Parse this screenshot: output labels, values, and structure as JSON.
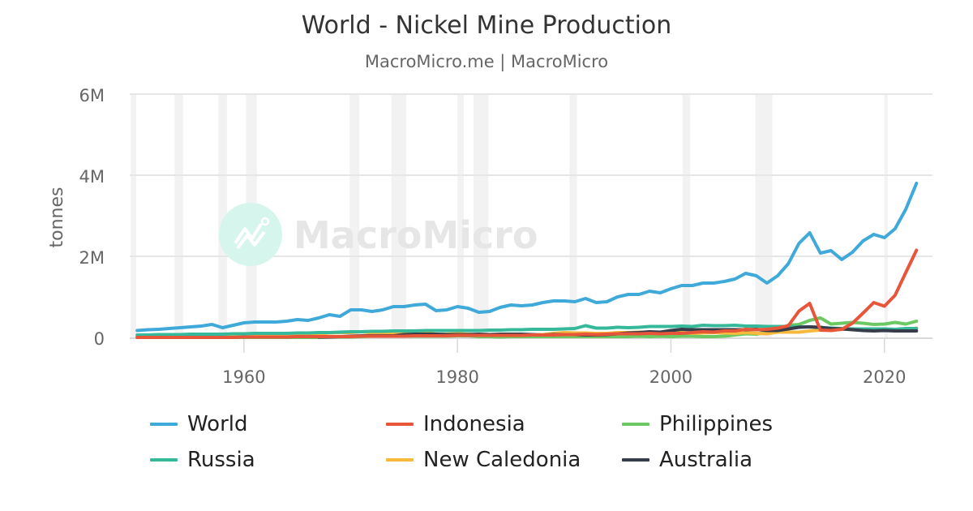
{
  "header": {
    "title": "World - Nickel Mine Production",
    "subtitle": "MacroMicro.me | MacroMicro"
  },
  "watermark": {
    "text": "MacroMicro",
    "circle_color": "#d6f5ec"
  },
  "chart_data": {
    "type": "line",
    "title": "World - Nickel Mine Production",
    "subtitle": "MacroMicro.me | MacroMicro",
    "xlabel": "",
    "ylabel": "tonnes",
    "ylim": [
      0,
      6000000
    ],
    "xlim": [
      1949.3,
      2024.5
    ],
    "y_ticks": [
      {
        "value": 0,
        "label": "0"
      },
      {
        "value": 2000000,
        "label": "2M"
      },
      {
        "value": 4000000,
        "label": "4M"
      },
      {
        "value": 6000000,
        "label": "6M"
      }
    ],
    "x_ticks": [
      {
        "value": 1960,
        "label": "1960"
      },
      {
        "value": 1980,
        "label": "1980"
      },
      {
        "value": 2000,
        "label": "2000"
      },
      {
        "value": 2020,
        "label": "2020"
      }
    ],
    "grid": true,
    "legend_position": "bottom",
    "recession_bands": [
      [
        1949.4,
        1949.9
      ],
      [
        1953.5,
        1954.3
      ],
      [
        1957.6,
        1958.4
      ],
      [
        1960.2,
        1961.2
      ],
      [
        1969.9,
        1970.8
      ],
      [
        1973.8,
        1975.2
      ],
      [
        1980.0,
        1980.6
      ],
      [
        1981.5,
        1982.9
      ],
      [
        1990.5,
        1991.2
      ],
      [
        2001.1,
        2001.8
      ],
      [
        2007.9,
        2009.5
      ],
      [
        2020.0,
        2020.3
      ]
    ],
    "x": [
      1950,
      1951,
      1952,
      1953,
      1954,
      1955,
      1956,
      1957,
      1958,
      1959,
      1960,
      1961,
      1962,
      1963,
      1964,
      1965,
      1966,
      1967,
      1968,
      1969,
      1970,
      1971,
      1972,
      1973,
      1974,
      1975,
      1976,
      1977,
      1978,
      1979,
      1980,
      1981,
      1982,
      1983,
      1984,
      1985,
      1986,
      1987,
      1988,
      1989,
      1990,
      1991,
      1992,
      1993,
      1994,
      1995,
      1996,
      1997,
      1998,
      1999,
      2000,
      2001,
      2002,
      2003,
      2004,
      2005,
      2006,
      2007,
      2008,
      2009,
      2010,
      2011,
      2012,
      2013,
      2014,
      2015,
      2016,
      2017,
      2018,
      2019,
      2020,
      2021,
      2022,
      2023
    ],
    "series": [
      {
        "name": "World",
        "color": "#3fa9d9",
        "values": [
          0.17,
          0.19,
          0.2,
          0.22,
          0.24,
          0.26,
          0.28,
          0.32,
          0.24,
          0.3,
          0.36,
          0.38,
          0.38,
          0.38,
          0.4,
          0.44,
          0.42,
          0.48,
          0.56,
          0.52,
          0.68,
          0.68,
          0.64,
          0.68,
          0.76,
          0.76,
          0.8,
          0.82,
          0.66,
          0.68,
          0.76,
          0.72,
          0.62,
          0.64,
          0.74,
          0.8,
          0.78,
          0.8,
          0.86,
          0.9,
          0.9,
          0.88,
          0.96,
          0.86,
          0.88,
          1.0,
          1.06,
          1.06,
          1.14,
          1.1,
          1.2,
          1.28,
          1.28,
          1.34,
          1.34,
          1.38,
          1.44,
          1.58,
          1.52,
          1.34,
          1.52,
          1.82,
          2.32,
          2.58,
          2.08,
          2.14,
          1.92,
          2.1,
          2.38,
          2.54,
          2.46,
          2.68,
          3.16,
          3.8
        ]
      },
      {
        "name": "Indonesia",
        "color": "#e8563a",
        "values": [
          0.0,
          0.0,
          0.0,
          0.0,
          0.0,
          0.0,
          0.0,
          0.0,
          0.0,
          0.0,
          0.01,
          0.01,
          0.01,
          0.01,
          0.01,
          0.02,
          0.02,
          0.02,
          0.02,
          0.02,
          0.02,
          0.03,
          0.03,
          0.03,
          0.03,
          0.03,
          0.04,
          0.04,
          0.04,
          0.04,
          0.05,
          0.05,
          0.05,
          0.05,
          0.05,
          0.05,
          0.05,
          0.06,
          0.06,
          0.06,
          0.07,
          0.07,
          0.08,
          0.07,
          0.08,
          0.09,
          0.09,
          0.09,
          0.1,
          0.09,
          0.1,
          0.1,
          0.12,
          0.14,
          0.13,
          0.16,
          0.16,
          0.2,
          0.19,
          0.2,
          0.23,
          0.29,
          0.65,
          0.84,
          0.18,
          0.17,
          0.2,
          0.35,
          0.6,
          0.86,
          0.77,
          1.04,
          1.6,
          2.15
        ]
      },
      {
        "name": "Philippines",
        "color": "#6cc862",
        "values": [
          0.0,
          0.0,
          0.0,
          0.0,
          0.0,
          0.0,
          0.0,
          0.0,
          0.0,
          0.0,
          0.0,
          0.0,
          0.0,
          0.0,
          0.0,
          0.0,
          0.0,
          0.0,
          0.01,
          0.01,
          0.01,
          0.02,
          0.03,
          0.03,
          0.03,
          0.03,
          0.03,
          0.03,
          0.03,
          0.03,
          0.04,
          0.04,
          0.02,
          0.02,
          0.01,
          0.02,
          0.02,
          0.02,
          0.02,
          0.02,
          0.02,
          0.02,
          0.02,
          0.02,
          0.02,
          0.02,
          0.02,
          0.03,
          0.02,
          0.03,
          0.02,
          0.03,
          0.03,
          0.02,
          0.02,
          0.03,
          0.06,
          0.09,
          0.08,
          0.14,
          0.18,
          0.3,
          0.32,
          0.42,
          0.48,
          0.33,
          0.35,
          0.37,
          0.35,
          0.32,
          0.33,
          0.37,
          0.33,
          0.4
        ]
      },
      {
        "name": "Russia",
        "color": "#35b99a",
        "values": [
          0.06,
          0.06,
          0.07,
          0.07,
          0.07,
          0.08,
          0.08,
          0.08,
          0.08,
          0.09,
          0.09,
          0.1,
          0.1,
          0.1,
          0.1,
          0.11,
          0.11,
          0.12,
          0.12,
          0.13,
          0.14,
          0.14,
          0.15,
          0.15,
          0.16,
          0.16,
          0.16,
          0.17,
          0.17,
          0.17,
          0.17,
          0.17,
          0.17,
          0.18,
          0.18,
          0.19,
          0.19,
          0.2,
          0.2,
          0.2,
          0.21,
          0.22,
          0.29,
          0.23,
          0.23,
          0.25,
          0.24,
          0.25,
          0.27,
          0.27,
          0.27,
          0.28,
          0.27,
          0.3,
          0.29,
          0.29,
          0.3,
          0.28,
          0.28,
          0.27,
          0.27,
          0.27,
          0.26,
          0.26,
          0.24,
          0.23,
          0.22,
          0.21,
          0.21,
          0.21,
          0.21,
          0.2,
          0.22,
          0.22
        ]
      },
      {
        "name": "New Caledonia",
        "color": "#f6b93b",
        "values": [
          0.03,
          0.03,
          0.03,
          0.03,
          0.03,
          0.03,
          0.04,
          0.04,
          0.04,
          0.05,
          0.05,
          0.05,
          0.05,
          0.05,
          0.06,
          0.06,
          0.07,
          0.09,
          0.11,
          0.12,
          0.12,
          0.14,
          0.11,
          0.11,
          0.12,
          0.13,
          0.12,
          0.11,
          0.08,
          0.08,
          0.09,
          0.08,
          0.06,
          0.05,
          0.06,
          0.07,
          0.07,
          0.06,
          0.07,
          0.1,
          0.12,
          0.11,
          0.11,
          0.1,
          0.1,
          0.12,
          0.12,
          0.13,
          0.12,
          0.11,
          0.12,
          0.12,
          0.1,
          0.11,
          0.12,
          0.11,
          0.1,
          0.12,
          0.1,
          0.09,
          0.13,
          0.13,
          0.13,
          0.16,
          0.18,
          0.19,
          0.2,
          0.21,
          0.21,
          0.21,
          0.2,
          0.19,
          0.19,
          0.23
        ]
      },
      {
        "name": "Australia",
        "color": "#363c4a",
        "values": [
          null,
          null,
          null,
          null,
          null,
          null,
          null,
          null,
          null,
          null,
          null,
          null,
          null,
          null,
          null,
          null,
          null,
          0.01,
          0.01,
          0.02,
          0.03,
          0.04,
          0.04,
          0.04,
          0.04,
          0.07,
          0.08,
          0.08,
          0.08,
          0.07,
          0.07,
          0.07,
          0.08,
          0.07,
          0.08,
          0.08,
          0.08,
          0.07,
          0.06,
          0.07,
          0.07,
          0.07,
          0.06,
          0.06,
          0.07,
          0.09,
          0.11,
          0.12,
          0.14,
          0.13,
          0.17,
          0.2,
          0.19,
          0.19,
          0.19,
          0.19,
          0.19,
          0.19,
          0.2,
          0.17,
          0.17,
          0.21,
          0.25,
          0.26,
          0.25,
          0.22,
          0.21,
          0.19,
          0.17,
          0.16,
          0.17,
          0.16,
          0.16,
          0.16
        ]
      }
    ],
    "value_unit": "millions of tonnes"
  },
  "legend": {
    "items": [
      {
        "label": "World",
        "color": "#3fa9d9"
      },
      {
        "label": "Indonesia",
        "color": "#e8563a"
      },
      {
        "label": "Philippines",
        "color": "#6cc862"
      },
      {
        "label": "Russia",
        "color": "#35b99a"
      },
      {
        "label": "New Caledonia",
        "color": "#f6b93b"
      },
      {
        "label": "Australia",
        "color": "#363c4a"
      }
    ]
  }
}
